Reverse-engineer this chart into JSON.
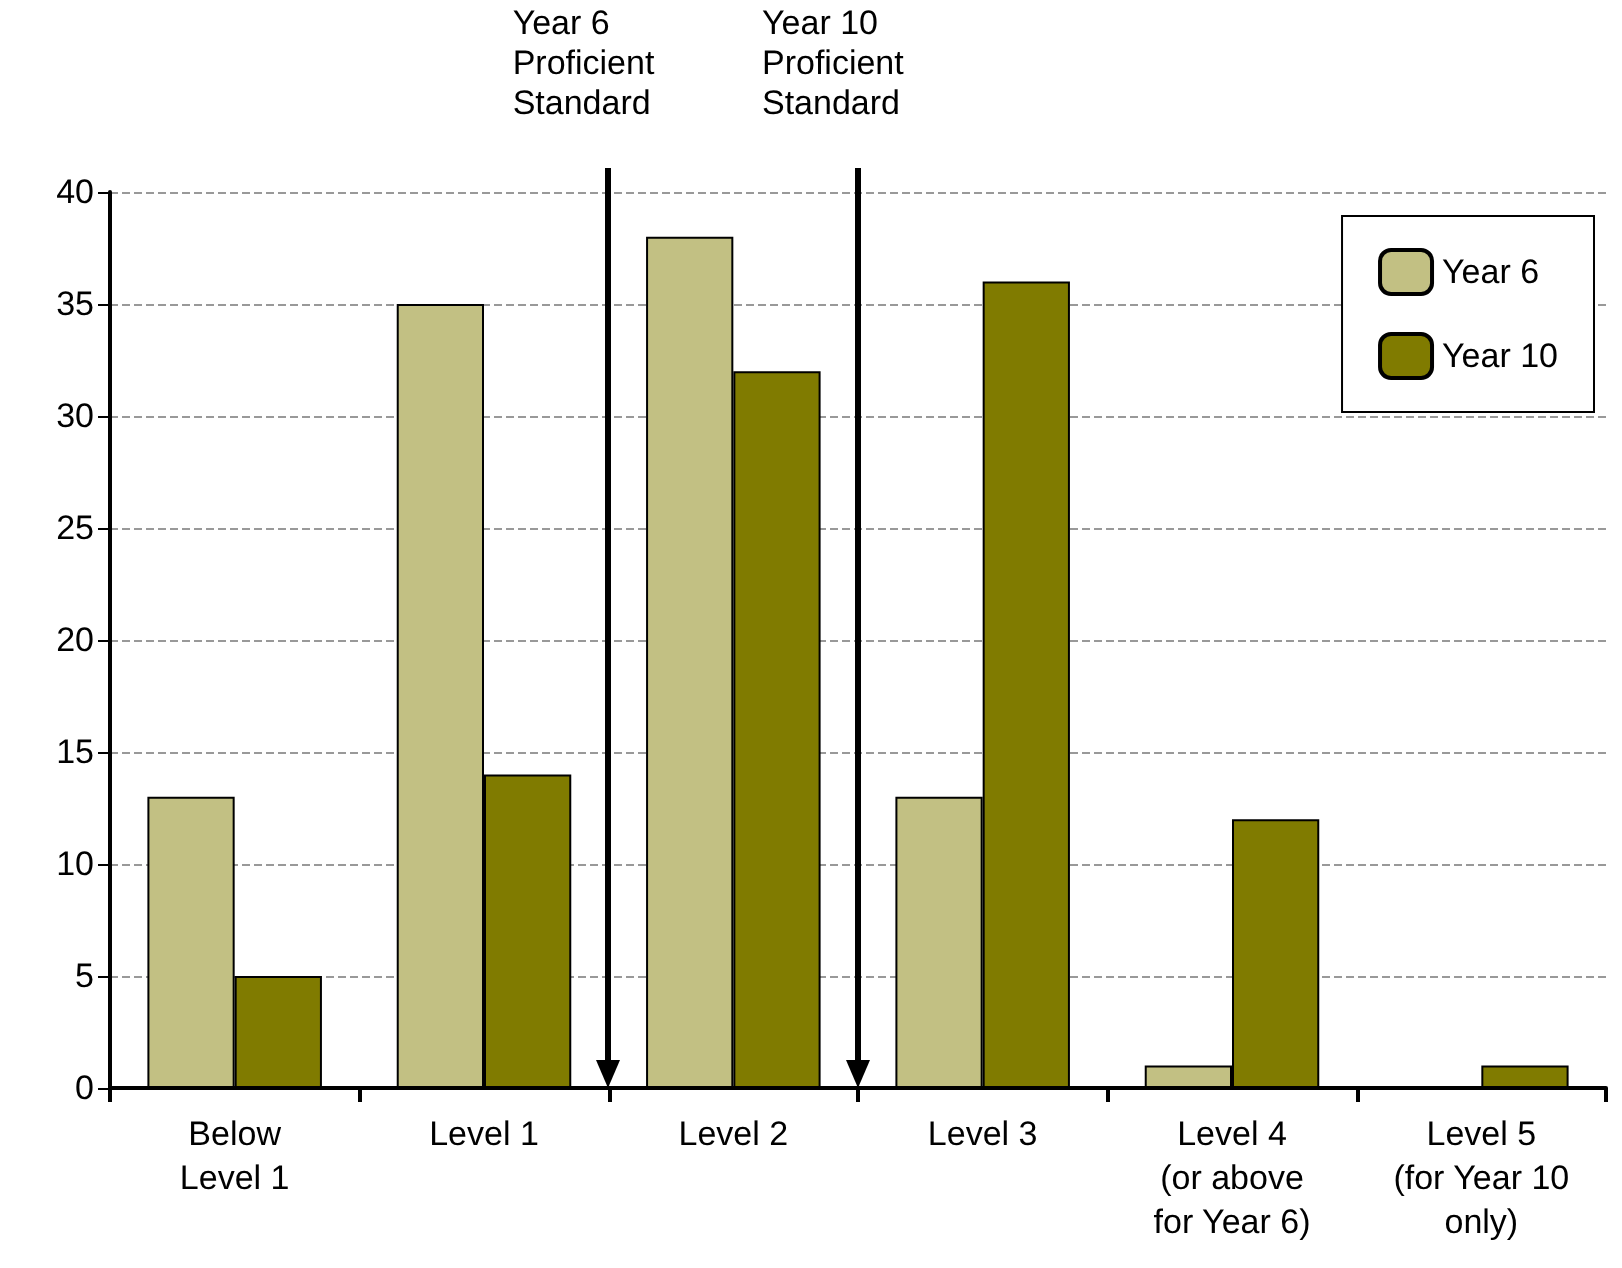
{
  "chart_data": {
    "type": "bar",
    "categories": [
      "Below\nLevel 1",
      "Level 1",
      "Level 2",
      "Level 3",
      "Level 4\n(or above\nfor Year 6)",
      "Level 5\n(for Year 10\nonly)"
    ],
    "series": [
      {
        "name": "Year 6",
        "color": "#c2c083",
        "values": [
          13,
          35,
          38,
          13,
          1,
          0
        ]
      },
      {
        "name": "Year 10",
        "color": "#807b00",
        "values": [
          5,
          14,
          32,
          36,
          12,
          1
        ]
      }
    ],
    "ylim": [
      0,
      40
    ],
    "yticks": [
      0,
      5,
      10,
      15,
      20,
      25,
      30,
      35,
      40
    ],
    "grid": "y",
    "legend": "top right",
    "annotations": [
      "Year 6\nProficient\nStandard",
      "Year 10\nProficient\nStandard"
    ]
  }
}
